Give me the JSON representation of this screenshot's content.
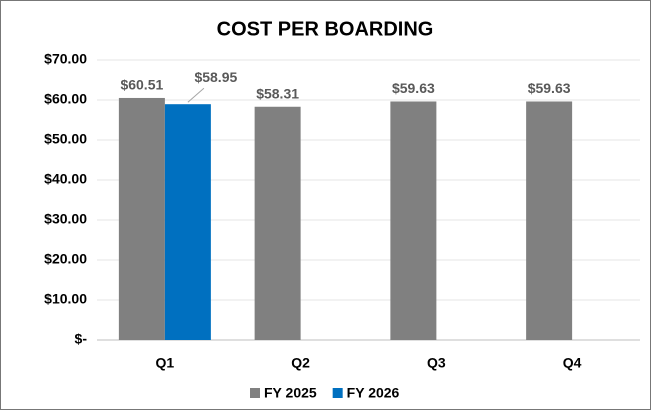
{
  "chart_data": {
    "type": "bar",
    "title": "COST PER BOARDING",
    "categories": [
      "Q1",
      "Q2",
      "Q3",
      "Q4"
    ],
    "series": [
      {
        "name": "FY 2025",
        "color": "#808080",
        "values": [
          60.51,
          58.31,
          59.63,
          59.63
        ],
        "value_labels": [
          "$60.51",
          "$58.31",
          "$59.63",
          "$59.63"
        ]
      },
      {
        "name": "FY 2026",
        "color": "#0070c0",
        "values": [
          58.95,
          null,
          null,
          null
        ],
        "value_labels": [
          "$58.95",
          null,
          null,
          null
        ]
      }
    ],
    "ylim": [
      0,
      70
    ],
    "yticks": [
      {
        "value": 0,
        "label": "$-"
      },
      {
        "value": 10,
        "label": "$10.00"
      },
      {
        "value": 20,
        "label": "$20.00"
      },
      {
        "value": 30,
        "label": "$30.00"
      },
      {
        "value": 40,
        "label": "$40.00"
      },
      {
        "value": 50,
        "label": "$50.00"
      },
      {
        "value": 60,
        "label": "$60.00"
      },
      {
        "value": 70,
        "label": "$70.00"
      }
    ],
    "grid": true,
    "legend": "bottom"
  }
}
